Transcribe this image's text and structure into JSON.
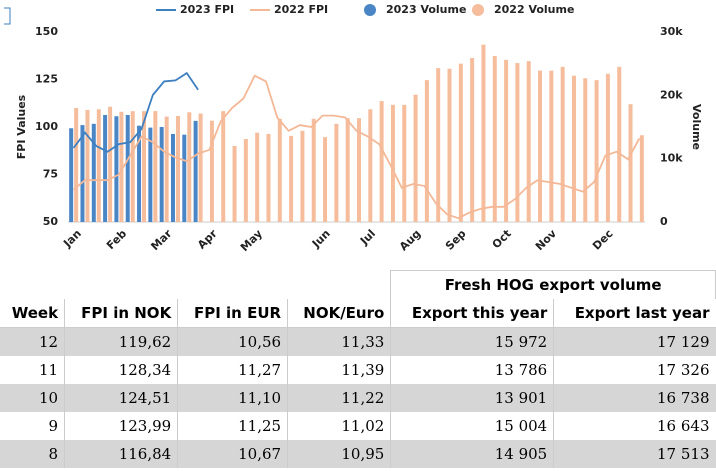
{
  "chart_data": {
    "type": "combo",
    "ylabel": "FPI Values",
    "y2label": "Volume",
    "categories": [
      "Jan",
      null,
      null,
      null,
      "Feb",
      null,
      null,
      null,
      "Mar",
      null,
      null,
      null,
      "Apr",
      null,
      null,
      null,
      "May",
      null,
      null,
      null,
      null,
      null,
      "Jun",
      null,
      null,
      null,
      "Jul",
      null,
      null,
      null,
      "Aug",
      null,
      null,
      null,
      "Sep",
      null,
      null,
      null,
      "Oct",
      null,
      null,
      null,
      "Nov",
      null,
      null,
      null,
      null,
      "Dec",
      null,
      null,
      null
    ],
    "ylim": [
      50,
      150
    ],
    "yticks": [
      50,
      75,
      100,
      125,
      150
    ],
    "y2lim": [
      0,
      30000
    ],
    "y2ticks": [
      0,
      {
        "value": 10000,
        "label": "10k"
      },
      {
        "value": 20000,
        "label": "20k"
      },
      {
        "value": 30000,
        "label": "30k"
      }
    ],
    "grid": false,
    "series": [
      {
        "name": "2023 FPI",
        "type": "line",
        "color": "#3d7fc1",
        "values": [
          89,
          97,
          90,
          87,
          91,
          92,
          99,
          116.84,
          123.99,
          124.51,
          128.34,
          119.62,
          null,
          null,
          null,
          null,
          null,
          null,
          null,
          null,
          null,
          null,
          null,
          null,
          null,
          null,
          null,
          null,
          null,
          null,
          null,
          null,
          null,
          null,
          null,
          null,
          null,
          null,
          null,
          null,
          null,
          null,
          null,
          null,
          null,
          null,
          null,
          null,
          null,
          null,
          null
        ]
      },
      {
        "name": "2022 FPI",
        "type": "line",
        "color": "#f4b896",
        "values": [
          67,
          72,
          72,
          72,
          75,
          85,
          95,
          92,
          87,
          84,
          82,
          86,
          88,
          103,
          110,
          115,
          127,
          124,
          105,
          98,
          101,
          100,
          106,
          106,
          105,
          98,
          95,
          91,
          80,
          68,
          70,
          69,
          60,
          54,
          52,
          55,
          57,
          58,
          58,
          62,
          68,
          72,
          71,
          70,
          68,
          66,
          71,
          85,
          87,
          83,
          94
        ]
      },
      {
        "name": "2023 Volume",
        "type": "bar",
        "axis": "y2",
        "color": "#4a86c5",
        "values": [
          14800,
          15300,
          15500,
          16900,
          16700,
          16900,
          15200,
          14905,
          15004,
          13901,
          13786,
          15972,
          null,
          null,
          null,
          null,
          null,
          null,
          null,
          null,
          null,
          null,
          null,
          null,
          null,
          null,
          null,
          null,
          null,
          null,
          null,
          null,
          null,
          null,
          null,
          null,
          null,
          null,
          null,
          null,
          null,
          null,
          null,
          null,
          null,
          null,
          null,
          null,
          null,
          null,
          null
        ]
      },
      {
        "name": "2022 Volume",
        "type": "bar",
        "axis": "y2",
        "color": "#f6bd9c",
        "values": [
          18000,
          17700,
          17800,
          18200,
          17400,
          17500,
          17500,
          17513,
          16643,
          16738,
          17326,
          17129,
          16000,
          17500,
          12000,
          13100,
          14100,
          13900,
          16300,
          13600,
          14400,
          16300,
          13400,
          15500,
          16400,
          16400,
          17800,
          19100,
          18500,
          18500,
          20100,
          22400,
          24300,
          24200,
          25000,
          25900,
          28000,
          26200,
          25600,
          25100,
          25400,
          23900,
          23900,
          24500,
          23100,
          22700,
          22400,
          23400,
          24500,
          18600,
          13700
        ]
      }
    ]
  },
  "table": {
    "group_header": "Fresh HOG export volume",
    "columns": [
      "Week",
      "FPI in NOK",
      "FPI in EUR",
      "NOK/Euro",
      "Export this year",
      "Export last year"
    ],
    "rows": [
      [
        "12",
        "119,62",
        "10,56",
        "11,33",
        "15 972",
        "17 129"
      ],
      [
        "11",
        "128,34",
        "11,27",
        "11,39",
        "13 786",
        "17 326"
      ],
      [
        "10",
        "124,51",
        "11,10",
        "11,22",
        "13 901",
        "16 738"
      ],
      [
        "9",
        "123,99",
        "11,25",
        "11,02",
        "15 004",
        "16 643"
      ],
      [
        "8",
        "116,84",
        "10,67",
        "10,95",
        "14 905",
        "17 513"
      ]
    ]
  }
}
